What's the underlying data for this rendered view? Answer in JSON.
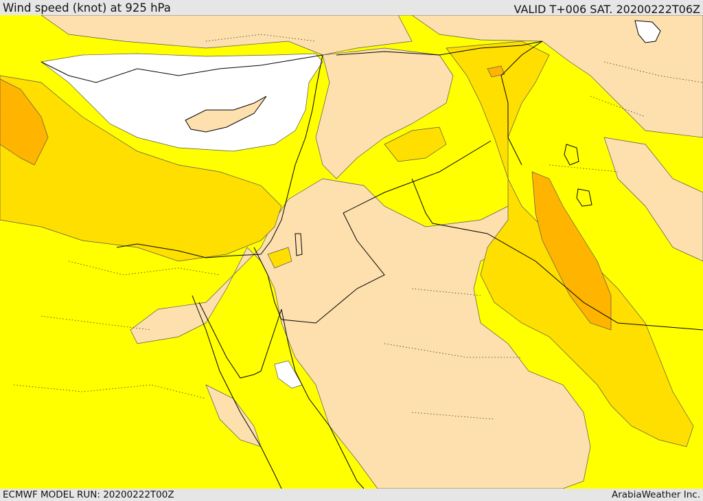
{
  "header": {
    "title": "Wind speed (knot) at 925 hPa",
    "valid": "VALID T+006 SAT. 20200222T06Z"
  },
  "footer": {
    "model_run": "ECMWF MODEL RUN: 20200222T00Z",
    "credit": "ArabiaWeather Inc."
  },
  "colors": {
    "band_0_5": "#ffffff",
    "band_5_10": "#fde0ad",
    "band_10_15": "#ffff00",
    "band_15_20": "#ffdf00",
    "band_20_25": "#ffb400",
    "border": "#000000"
  }
}
